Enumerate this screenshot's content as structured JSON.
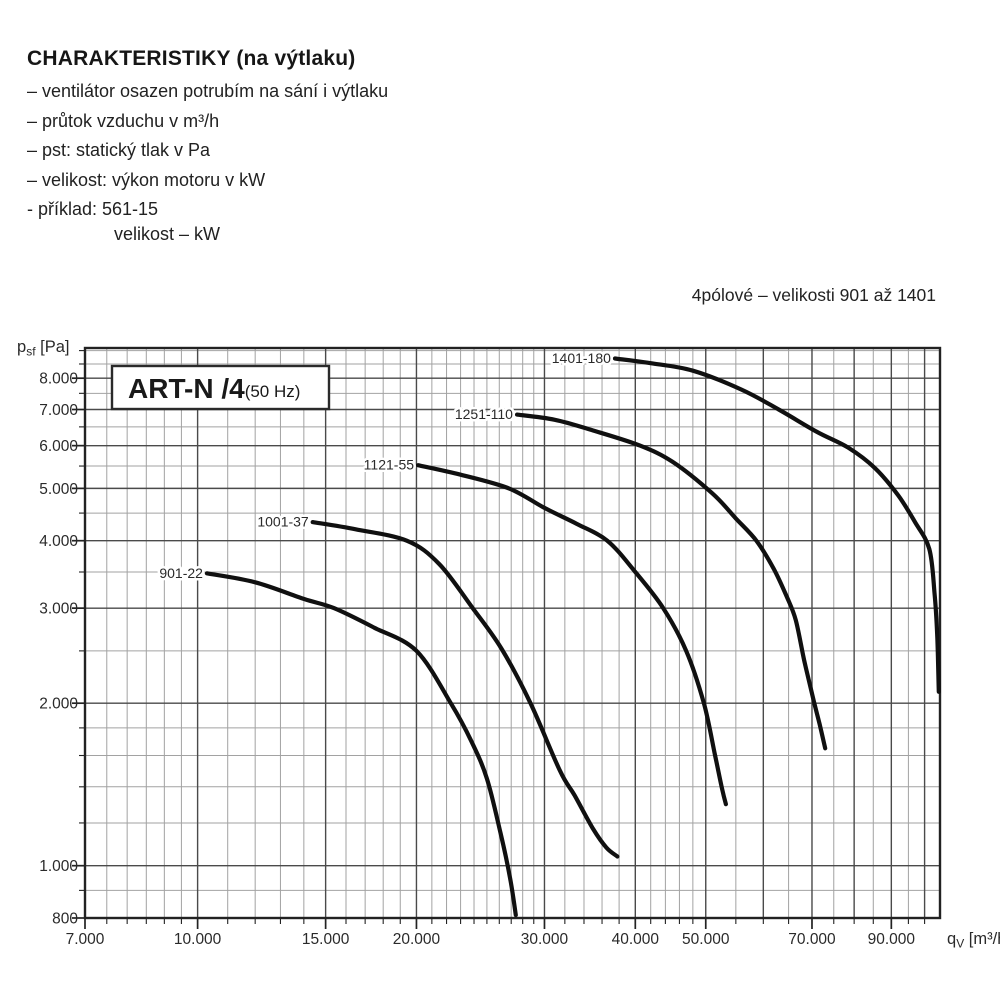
{
  "header": {
    "title": "CHARAKTERISTIKY (na výtlaku)",
    "bullets": [
      "– ventilátor osazen potrubím na sání i výtlaku",
      "– průtok vzduchu v m³/h",
      "– pst: statický tlak v Pa",
      "– velikost: výkon motoru v kW",
      "- příklad: 561-15"
    ],
    "example_detail": "velikost – kW"
  },
  "note": "4pólové – velikosti 901 až 1401",
  "chart_data": {
    "type": "line",
    "title_box": {
      "model": "ART-N /4",
      "frequency": "(50 Hz)"
    },
    "legend": "inline-labels",
    "grid": true,
    "x_axis": {
      "symbol": "q",
      "symbol_sub": "V",
      "unit": "[m³/h]",
      "scale": "log",
      "min": 7000,
      "max": 105000,
      "ticks": [
        {
          "value": 7000,
          "label": "7.000"
        },
        {
          "value": 10000,
          "label": "10.000"
        },
        {
          "value": 15000,
          "label": "15.000"
        },
        {
          "value": 20000,
          "label": "20.000"
        },
        {
          "value": 30000,
          "label": "30.000"
        },
        {
          "value": 40000,
          "label": "40.000"
        },
        {
          "value": 50000,
          "label": "50.000"
        },
        {
          "value": 70000,
          "label": "70.000"
        },
        {
          "value": 90000,
          "label": "90.000"
        }
      ],
      "extra_major_gridlines": [
        60000,
        80000,
        100000
      ],
      "minor_gridlines": [
        7500,
        8000,
        8500,
        9000,
        9500,
        11000,
        12000,
        13000,
        14000,
        16000,
        17000,
        18000,
        19000,
        21000,
        22000,
        23000,
        24000,
        25000,
        26000,
        27000,
        28000,
        29000,
        32000,
        34000,
        36000,
        38000,
        42000,
        44000,
        46000,
        48000,
        55000,
        65000,
        75000,
        85000,
        95000
      ]
    },
    "y_axis": {
      "symbol": "p",
      "symbol_sub": "sf",
      "unit": "[Pa]",
      "scale": "log",
      "min": 800,
      "max": 9100,
      "ticks": [
        {
          "value": 800,
          "label": "800"
        },
        {
          "value": 1000,
          "label": "1.000"
        },
        {
          "value": 2000,
          "label": "2.000"
        },
        {
          "value": 3000,
          "label": "3.000"
        },
        {
          "value": 4000,
          "label": "4.000"
        },
        {
          "value": 5000,
          "label": "5.000"
        },
        {
          "value": 6000,
          "label": "6.000"
        },
        {
          "value": 7000,
          "label": "7.000"
        },
        {
          "value": 8000,
          "label": "8.000"
        }
      ],
      "extra_major_gridlines": [],
      "minor_gridlines": [
        900,
        1200,
        1400,
        1600,
        1800,
        2500,
        3500,
        4500,
        5500,
        6500,
        7500,
        8500,
        9000
      ]
    },
    "series": [
      {
        "name": "901-22",
        "points": [
          [
            10300,
            3480
          ],
          [
            12000,
            3350
          ],
          [
            14000,
            3120
          ],
          [
            15400,
            3000
          ],
          [
            17500,
            2760
          ],
          [
            20000,
            2500
          ],
          [
            22300,
            2000
          ],
          [
            23800,
            1700
          ],
          [
            25000,
            1450
          ],
          [
            26100,
            1150
          ],
          [
            26900,
            950
          ],
          [
            27400,
            810
          ]
        ]
      },
      {
        "name": "1001-37",
        "points": [
          [
            14400,
            4330
          ],
          [
            16500,
            4200
          ],
          [
            19400,
            4000
          ],
          [
            21500,
            3620
          ],
          [
            23900,
            3000
          ],
          [
            26200,
            2520
          ],
          [
            28700,
            2000
          ],
          [
            31500,
            1500
          ],
          [
            33000,
            1350
          ],
          [
            35000,
            1170
          ],
          [
            36500,
            1080
          ],
          [
            37800,
            1040
          ]
        ]
      },
      {
        "name": "1121-55",
        "points": [
          [
            20100,
            5520
          ],
          [
            23000,
            5300
          ],
          [
            26800,
            5000
          ],
          [
            30000,
            4600
          ],
          [
            33200,
            4300
          ],
          [
            36600,
            4000
          ],
          [
            40000,
            3500
          ],
          [
            43700,
            3000
          ],
          [
            47000,
            2500
          ],
          [
            49700,
            2000
          ],
          [
            51500,
            1600
          ],
          [
            52700,
            1380
          ],
          [
            53300,
            1300
          ]
        ]
      },
      {
        "name": "1251-110",
        "points": [
          [
            27500,
            6850
          ],
          [
            31000,
            6700
          ],
          [
            35000,
            6400
          ],
          [
            40600,
            6000
          ],
          [
            45000,
            5600
          ],
          [
            51000,
            4900
          ],
          [
            55000,
            4400
          ],
          [
            58700,
            4000
          ],
          [
            62000,
            3550
          ],
          [
            64700,
            3140
          ],
          [
            66500,
            2850
          ],
          [
            68300,
            2400
          ],
          [
            70200,
            2050
          ],
          [
            71700,
            1830
          ],
          [
            73000,
            1650
          ]
        ]
      },
      {
        "name": "1401-180",
        "points": [
          [
            37500,
            8700
          ],
          [
            42000,
            8530
          ],
          [
            48000,
            8260
          ],
          [
            56000,
            7620
          ],
          [
            63000,
            7000
          ],
          [
            71000,
            6370
          ],
          [
            78500,
            5950
          ],
          [
            85500,
            5450
          ],
          [
            92000,
            4850
          ],
          [
            97000,
            4330
          ],
          [
            101500,
            3860
          ],
          [
            103200,
            3200
          ],
          [
            104100,
            2650
          ],
          [
            104600,
            2100
          ]
        ]
      }
    ],
    "colors": {
      "curve": "#101010",
      "major_grid": "#4a4a4a",
      "minor_grid": "#a2a2a2",
      "border": "#222222",
      "text": "#2a2a2a"
    }
  }
}
